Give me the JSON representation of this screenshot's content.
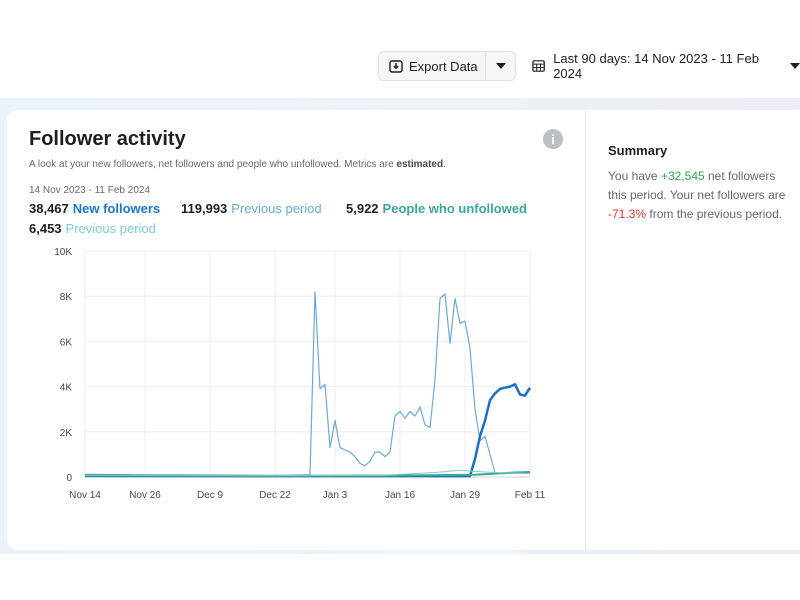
{
  "toolbar": {
    "export_label": "Export Data",
    "date_range_label": "Last 90 days: 14 Nov 2023 - 11 Feb 2024"
  },
  "card": {
    "title": "Follower activity",
    "subtitle_prefix": "A look at your new followers, net followers and people who unfollowed. Metrics are ",
    "subtitle_emphasis": "estimated",
    "subtitle_suffix": ".",
    "period_label": "14 Nov 2023 - 11 Feb 2024",
    "info_icon": "info-icon",
    "metrics": [
      {
        "value": "38,467",
        "label": "New followers",
        "color": "#1877d2"
      },
      {
        "value": "119,993",
        "label": "Previous period",
        "color": "#6aa9df"
      },
      {
        "value": "5,922",
        "label": "People who unfollowed",
        "color": "#3aa99b"
      },
      {
        "value": "6,453",
        "label": "Previous period",
        "color": "#7ccfc2"
      }
    ]
  },
  "summary": {
    "title": "Summary",
    "line1_prefix": "You have ",
    "net_value": "+32,545",
    "line1_suffix": " net followers this period. Your net followers are ",
    "change_value": "-71.3%",
    "line2_suffix": " from the previous period."
  },
  "chart_data": {
    "type": "line",
    "y_tick_labels": [
      "0",
      "2K",
      "4K",
      "6K",
      "8K",
      "10K"
    ],
    "ylim": [
      0,
      10000
    ],
    "x_tick_labels": [
      "Nov 14",
      "Nov 26",
      "Dec 9",
      "Dec 22",
      "Jan 3",
      "Jan 16",
      "Jan 29",
      "Feb 11"
    ],
    "x_tick_day_index": [
      0,
      12,
      25,
      38,
      50,
      63,
      76,
      89
    ],
    "grid": true,
    "series": [
      {
        "name": "Previous period",
        "color": "#6aa9df",
        "width": 1.2,
        "points": [
          [
            0,
            100
          ],
          [
            12,
            50
          ],
          [
            25,
            60
          ],
          [
            38,
            50
          ],
          [
            45,
            100
          ],
          [
            46,
            8200
          ],
          [
            47,
            3900
          ],
          [
            48,
            4100
          ],
          [
            49,
            1300
          ],
          [
            50,
            2500
          ],
          [
            51,
            1300
          ],
          [
            52,
            1200
          ],
          [
            53,
            1100
          ],
          [
            54,
            900
          ],
          [
            55,
            600
          ],
          [
            56,
            500
          ],
          [
            57,
            700
          ],
          [
            58,
            1100
          ],
          [
            59,
            1100
          ],
          [
            60,
            900
          ],
          [
            61,
            1100
          ],
          [
            62,
            2700
          ],
          [
            63,
            2900
          ],
          [
            64,
            2600
          ],
          [
            65,
            2900
          ],
          [
            66,
            2700
          ],
          [
            67,
            3100
          ],
          [
            68,
            2300
          ],
          [
            69,
            2200
          ],
          [
            70,
            4300
          ],
          [
            71,
            7900
          ],
          [
            72,
            8100
          ],
          [
            73,
            5900
          ],
          [
            74,
            7900
          ],
          [
            75,
            6800
          ],
          [
            76,
            6900
          ],
          [
            77,
            5700
          ],
          [
            78,
            3000
          ],
          [
            79,
            1600
          ],
          [
            80,
            1800
          ],
          [
            81,
            1000
          ],
          [
            82,
            200
          ],
          [
            83,
            150
          ],
          [
            89,
            180
          ]
        ]
      },
      {
        "name": "New followers",
        "color": "#1d6fc4",
        "width": 2.5,
        "points": [
          [
            0,
            50
          ],
          [
            30,
            40
          ],
          [
            60,
            40
          ],
          [
            77,
            40
          ],
          [
            78,
            800
          ],
          [
            79,
            1800
          ],
          [
            80,
            2500
          ],
          [
            81,
            3400
          ],
          [
            82,
            3700
          ],
          [
            83,
            3900
          ],
          [
            84,
            3950
          ],
          [
            85,
            4000
          ],
          [
            86,
            4100
          ],
          [
            87,
            3650
          ],
          [
            88,
            3600
          ],
          [
            89,
            3950
          ]
        ]
      },
      {
        "name": "People who unfollowed",
        "color": "#3aa99b",
        "width": 2,
        "points": [
          [
            0,
            100
          ],
          [
            10,
            80
          ],
          [
            20,
            70
          ],
          [
            40,
            50
          ],
          [
            60,
            60
          ],
          [
            78,
            100
          ],
          [
            82,
            150
          ],
          [
            86,
            200
          ],
          [
            89,
            220
          ]
        ]
      },
      {
        "name": "Previous period",
        "color": "#7ccfc2",
        "width": 1,
        "points": [
          [
            0,
            60
          ],
          [
            30,
            50
          ],
          [
            60,
            80
          ],
          [
            70,
            200
          ],
          [
            75,
            300
          ],
          [
            78,
            250
          ],
          [
            82,
            200
          ],
          [
            89,
            150
          ]
        ]
      }
    ]
  }
}
